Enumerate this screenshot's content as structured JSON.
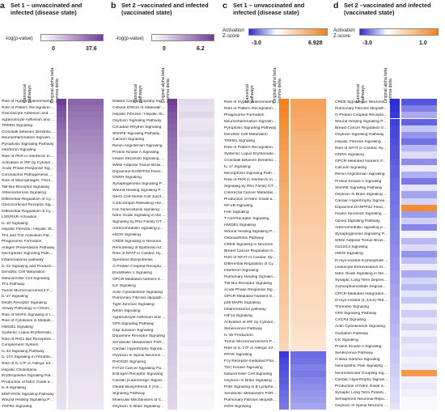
{
  "panels": [
    {
      "id": "a",
      "label": "a",
      "title": "Set 1 – unvaccinated and infected (disease state)",
      "cbar_label": "-log(p-value)",
      "cmin": "0",
      "cmax": "37.6",
      "col_headers": [
        "Canonical pathways",
        "Original alpha beta gamma delta"
      ],
      "colors": {
        "low": "#ffffff",
        "high": "#6f3f97"
      },
      "pathways": [
        "Role of Hypercytokinemia/hy...",
        "Role of Pattern Recognition R...",
        "Granulocyte Adhesion and Di...",
        "Agranulocyte Adhesion and D...",
        "TREM1 Signaling",
        "Crosstalk between Dendritic ...",
        "Neuroinflammation Signaling...",
        "Pyroptosis Signaling Pathway",
        "Interferon Signaling",
        "Role of PKR in Interferon Indu...",
        "Activation of IRF by Cytosolic ...",
        "Acute Phase Response Signal...",
        "Coronavirus Pathogenesis Pa...",
        "Role of Macrophages, Fibrobl...",
        "Toll-like Receptor Signaling",
        "Atherosclerosis Signaling",
        "Differential Regulation of Cyt...",
        "Glucocorticoid Receptor Sign...",
        "Differential Regulation of Cyt...",
        "LXR/RXR Activation",
        "IL-10 Signaling",
        "Hepatic Fibrosis / Hepatic St...",
        "Th1 and Th2 Activation Pathw...",
        "Phagosome Formation",
        "Antigen Presentation Pathway",
        "Necroptosis Signaling Pathway",
        "Inflammasome pathway",
        "IL-12 Signaling and Producti...",
        "Dendritic Cell Maturation",
        "Natural Killer Cell Signaling",
        "Th1 Pathway",
        "Tumor Microenvironment Pat...",
        "IL-17 Signaling",
        "Death Receptor Signaling",
        "Airway Pathology in Chronic ...",
        "Role of MAPK Signaling in Inh...",
        "Role of Cytokines in Mediatin...",
        "HMGB1 Signaling",
        "Systemic Lupus Erythematosu...",
        "Role of RIG1-like Receptors i...",
        "Complement System",
        "IL-23 Signaling Pathway",
        "IL-17A Signaling in Fibroblasts",
        "Role of IL-17F in Allergic Infla...",
        "Hepatic Cholestasis",
        "Erythropoietin Signaling Path...",
        "Production of Nitric Oxide an...",
        "IL-6 Signaling",
        "MSP-RON Signaling Pathway",
        "Wound Healing Signaling Pat...",
        "TNFR2 Signaling"
      ],
      "values": [
        [
          37.6,
          30.2
        ],
        [
          35.1,
          28.4
        ],
        [
          33.0,
          27.1
        ],
        [
          31.2,
          26.0
        ],
        [
          29.8,
          25.3
        ],
        [
          28.1,
          24.0
        ],
        [
          26.9,
          23.2
        ],
        [
          25.4,
          22.0
        ],
        [
          24.8,
          21.7
        ],
        [
          23.5,
          20.1
        ],
        [
          22.6,
          19.4
        ],
        [
          21.9,
          18.8
        ],
        [
          21.0,
          18.1
        ],
        [
          20.4,
          17.2
        ],
        [
          19.8,
          17.0
        ],
        [
          19.0,
          16.4
        ],
        [
          18.5,
          15.9
        ],
        [
          17.8,
          15.2
        ],
        [
          17.2,
          14.8
        ],
        [
          16.6,
          14.1
        ],
        [
          16.1,
          13.9
        ],
        [
          15.7,
          13.2
        ],
        [
          15.2,
          12.8
        ],
        [
          14.8,
          12.5
        ],
        [
          14.3,
          12.0
        ],
        [
          13.9,
          11.8
        ],
        [
          13.5,
          11.1
        ],
        [
          13.0,
          10.9
        ],
        [
          12.6,
          10.6
        ],
        [
          12.2,
          10.1
        ],
        [
          11.9,
          9.8
        ],
        [
          11.5,
          9.5
        ],
        [
          11.2,
          9.3
        ],
        [
          10.8,
          9.0
        ],
        [
          10.5,
          8.6
        ],
        [
          10.1,
          8.4
        ],
        [
          9.8,
          8.1
        ],
        [
          9.5,
          7.9
        ],
        [
          9.2,
          7.5
        ],
        [
          8.9,
          7.2
        ],
        [
          8.6,
          7.0
        ],
        [
          8.3,
          6.8
        ],
        [
          8.0,
          6.5
        ],
        [
          7.8,
          6.2
        ],
        [
          7.5,
          6.0
        ],
        [
          7.2,
          5.8
        ],
        [
          7.0,
          5.5
        ],
        [
          6.7,
          5.3
        ],
        [
          6.5,
          5.0
        ],
        [
          6.2,
          4.8
        ],
        [
          6.0,
          4.6
        ]
      ]
    },
    {
      "id": "b",
      "label": "b",
      "title": "Set 2 –vaccinated and infected (vaccinated state)",
      "cbar_label": "-log(p-value)",
      "cmin": "0",
      "cmax": "6.2",
      "col_headers": [
        "Canonical pathways",
        "Original alpha beta gamma delta"
      ],
      "colors": {
        "low": "#ffffff",
        "high": "#6f3f97"
      },
      "pathways": [
        "Dilated Cardiomyopathy Sign...",
        "Cellular Effects of Sildenafil (...",
        "Hepatic Fibrosis / Hepatic St...",
        "Oxytocin Signaling Pathway",
        "Circadian Rhythm Signaling",
        "SNARE Signaling Pathway",
        "Calcium Signaling",
        "Renin-Angiotensin Signaling",
        "Protein Kinase A Signaling",
        "Insulin Secretion Signaling Pa...",
        "White Adipose Tissue Browni...",
        "Dopamine-DARPP32 Feedbac...",
        "GNRH Signaling",
        "Synaptogenesis Signaling Pat...",
        "Wound Healing Signaling Pat...",
        "Germ Cell-Sertoli Cell Junctio...",
        "Corticotropin Releasing Hor...",
        "Iron homeostasis signaling p...",
        "Nitric Oxide Signaling in the ...",
        "Signaling by Rho Family GTPa...",
        "Adrenomedullin signaling pat...",
        "eNOS Signaling",
        "CREB Signaling in Neurons",
        "Remodeling of Epithelial Adh...",
        "Role of NFAT in Cardiac Hype...",
        "Spermine Biosynthesis",
        "G-Protein Coupled Receptor ...",
        "Endothelin-1 Signaling",
        "GPCR-Mediated Nutrient Sen...",
        "ILK Signaling",
        "Actin Cytoskeleton Signaling",
        "Pulmonary Fibrosis Idiopathic...",
        "Tight Junction Signaling",
        "Netrin Signaling",
        "Agranulocyte Adhesion and D...",
        "GP6 Signaling Pathway",
        "Gap Junction Signaling",
        "Dopamine Receptor Signaling",
        "Xenobiotic Metabolism PXR S...",
        "Cardiac Hypertrophy Signalin...",
        "Oxytocin In Spinal Neurons Si...",
        "RHOGDI Signaling",
        "FAT10 Cancer Signaling Pathw...",
        "Estrogen Receptor Signaling",
        "Cardiac β-adrenergic Signaling",
        "Oleate Biosynthesis II (Anima...",
        "Signaling Pathway",
        "Molecular Mechanisms of Ca...",
        "Oxytocin In Brain Signaling P..."
      ],
      "values": [
        [
          6.2,
          1.2
        ],
        [
          5.8,
          1.0
        ],
        [
          5.5,
          1.3
        ],
        [
          5.3,
          0.8
        ],
        [
          5.1,
          0.9
        ],
        [
          4.9,
          1.1
        ],
        [
          4.7,
          0.7
        ],
        [
          4.6,
          0.9
        ],
        [
          4.4,
          1.0
        ],
        [
          4.3,
          0.8
        ],
        [
          4.1,
          0.6
        ],
        [
          4.0,
          0.9
        ],
        [
          3.9,
          0.7
        ],
        [
          3.8,
          1.0
        ],
        [
          3.7,
          0.8
        ],
        [
          3.6,
          0.6
        ],
        [
          3.5,
          0.9
        ],
        [
          3.4,
          0.7
        ],
        [
          3.3,
          0.5
        ],
        [
          3.2,
          0.8
        ],
        [
          3.1,
          0.6
        ],
        [
          3.0,
          0.7
        ],
        [
          2.9,
          0.9
        ],
        [
          2.8,
          0.5
        ],
        [
          2.8,
          0.6
        ],
        [
          2.7,
          0.4
        ],
        [
          2.6,
          0.7
        ],
        [
          2.5,
          0.6
        ],
        [
          2.5,
          0.5
        ],
        [
          2.4,
          0.8
        ],
        [
          2.3,
          0.6
        ],
        [
          2.3,
          0.4
        ],
        [
          2.2,
          0.5
        ],
        [
          2.1,
          0.7
        ],
        [
          2.1,
          0.4
        ],
        [
          2.0,
          0.6
        ],
        [
          1.9,
          0.5
        ],
        [
          1.9,
          0.4
        ],
        [
          1.8,
          0.6
        ],
        [
          1.8,
          0.3
        ],
        [
          1.7,
          0.5
        ],
        [
          1.7,
          0.4
        ],
        [
          1.6,
          0.5
        ],
        [
          1.6,
          0.3
        ],
        [
          1.5,
          0.4
        ],
        [
          1.5,
          0.3
        ],
        [
          1.4,
          0.4
        ],
        [
          1.4,
          0.3
        ],
        [
          1.3,
          0.3
        ]
      ]
    },
    {
      "id": "c",
      "label": "c",
      "title": "Set 1 – unvaccinated and infected (disease state)",
      "cbar_label": "Activation Z-score",
      "cmin": "-3.0",
      "cmax": "6.928",
      "col_headers": [
        "Canonical pathways",
        "Original alpha beta gamma delta"
      ],
      "colors": {
        "neg": "#2b2bd8",
        "mid": "#ffffff",
        "pos": "#f2801f"
      },
      "pathways": [
        "Role of Hypercytokinemia/hy...",
        "Role of Pattern Recognition R...",
        "Phagosome Formation",
        "Neuroinflammation Signaling...",
        "Pyroptosis Signaling Pathway",
        "Dendritic Cell Maturation",
        "TREM1 Signaling",
        "Role of Pattern Recognition R...",
        "Systemic Lupus Erythematosu...",
        "Crosstalk between Dendritic ...",
        "IL-17 Signaling",
        "Necroptosis Signaling Pathway",
        "Role of PKR in Interferon Indu...",
        "Signaling by Rho Family GTPa...",
        "Colorectal Cancer Metastasis...",
        "Production of Nitric Oxide an...",
        "NF-κB Signaling",
        "FAK Signaling",
        "T Cell Receptor Signaling",
        "HMGB1 Signaling",
        "Wound Healing Signaling Pat...",
        "Osteoarthritis Pathway",
        "CREB Signaling in Neurons",
        "Breast Cancer Regulation by ...",
        "Role of NFAT in Cardiac Hype...",
        "Differential Regulation of Cyt...",
        "Interferon Signaling",
        "Pulmonary Healing Signaling ...",
        "Toll-like Receptor Signaling",
        "Acute Phase Response Signal...",
        "GPCR-Mediated Nutrient Sen...",
        "p38 MAPK Signaling",
        "Inflammasome pathway",
        "HIF1α Signaling",
        "Activation of IRF by Cytosolic ...",
        "Senescence Pathway",
        "IL-15 Production",
        "Tumor Microenvironment Pat...",
        "Role of IL-17F in Allergic Infla...",
        "PPAR Signaling",
        "Fcγ Receptor-mediated Phag...",
        "TEC Kinase Signaling",
        "Natural Killer Cell Signaling",
        "Oxytocin In Brain Signaling P...",
        "PI3K Signaling in B Lymphocyt...",
        "Xenobiotic Metabolism PXR S...",
        "Pulmonary Fibrosis Idiopathic...",
        "iNOS Signaling"
      ],
      "values": [
        [
          6.9,
          5.1
        ],
        [
          6.7,
          5.0
        ],
        [
          6.5,
          4.8
        ],
        [
          6.2,
          4.6
        ],
        [
          6.0,
          4.5
        ],
        [
          5.8,
          4.2
        ],
        [
          5.6,
          4.1
        ],
        [
          5.5,
          4.0
        ],
        [
          5.3,
          3.9
        ],
        [
          5.2,
          3.7
        ],
        [
          5.0,
          3.6
        ],
        [
          4.9,
          3.6
        ],
        [
          4.8,
          3.4
        ],
        [
          4.6,
          3.3
        ],
        [
          4.5,
          3.2
        ],
        [
          4.4,
          3.1
        ],
        [
          4.3,
          3.0
        ],
        [
          4.2,
          3.0
        ],
        [
          4.1,
          2.9
        ],
        [
          4.0,
          2.8
        ],
        [
          3.9,
          2.7
        ],
        [
          3.8,
          2.7
        ],
        [
          3.7,
          2.6
        ],
        [
          3.6,
          2.5
        ],
        [
          3.5,
          2.4
        ],
        [
          3.4,
          2.4
        ],
        [
          3.4,
          2.3
        ],
        [
          3.3,
          2.2
        ],
        [
          3.2,
          2.2
        ],
        [
          3.1,
          2.1
        ],
        [
          3.0,
          2.0
        ],
        [
          3.0,
          2.0
        ],
        [
          2.9,
          1.9
        ],
        [
          2.8,
          1.8
        ],
        [
          2.7,
          1.8
        ],
        [
          2.6,
          1.7
        ],
        [
          2.5,
          1.6
        ],
        [
          2.4,
          1.5
        ],
        [
          2.3,
          1.4
        ],
        [
          -2.8,
          -2.1
        ],
        [
          -2.6,
          -2.0
        ],
        [
          -2.5,
          -1.8
        ],
        [
          -2.4,
          -1.9
        ],
        [
          -2.3,
          -1.7
        ],
        [
          -2.2,
          -1.6
        ],
        [
          -2.1,
          -1.5
        ],
        [
          -2.0,
          -1.4
        ],
        [
          -1.9,
          -1.3
        ]
      ]
    },
    {
      "id": "d",
      "label": "d",
      "title": "Set 2 –vaccinated and infected (vaccinated state)",
      "cbar_label": "Activation Z-score",
      "cmin": "-3.0",
      "cmax": "1.0",
      "col_headers": [
        "Canonical pathways",
        "Original alpha beta gamma delta"
      ],
      "colors": {
        "neg": "#2b2bd8",
        "mid": "#ffffff",
        "pos": "#f2801f"
      },
      "pathways": [
        "CREB Signaling in Neurons",
        "Pulmonary Fibrosis Idiopathic...",
        "G-Protein Coupled Receptor ...",
        "Wound Healing Signaling Pat...",
        "Breast Cancer Regulation by ...",
        "Oxytocin Signaling Pathway",
        "Hepatic Fibrosis Signaling Pa...",
        "Role of NFAT in Cardiac Hype...",
        "GNRH Signaling",
        "GPCR-Mediated Nutrient Sen...",
        "Calcium Signaling",
        "Renin-Angiotensin Signaling",
        "Protein Kinase A Signaling",
        "SNARE Signaling Pathway",
        "Oxytocin In Brain Signaling P...",
        "Cardiac Hypertrophy Signalin...",
        "Dopamine-DARPP32 Feedbac...",
        "Insulin Secretion Signaling Pa...",
        "Opioid Signaling Pathway",
        "Adrenomedullin signaling pat...",
        "Synaptogenesis Signaling Pat...",
        "White Adipose Tissue Browni...",
        "Gα12/13 Signaling",
        "eNOS Signaling",
        "D-myo-inositol-5-phosphate ...",
        "Leukocyte Extravasation Sign...",
        "Nitric Oxide Signaling in the ...",
        "Synaptic Long Term Depressi...",
        "3-phosphoinositide Degradat...",
        "GPCR-Mediated Integration o...",
        "D-myo-inositol (1,4,5,6)-Tetra...",
        "Thrombin Signaling",
        "GP6 Signaling Pathway",
        "CXCR4 Signaling",
        "Actin Cytoskeleton Signaling",
        "Gustation Pathway",
        "ILK Signaling",
        "Protein Kinase A Signaling",
        "Senescence Pathway",
        "G Beta Gamma Signaling",
        "Neuropathic Pain Signaling in...",
        "Neurovascular Coupling Sign...",
        "Cardiac Hypertrophy Signaling",
        "Production of Nitric Oxide an...",
        "Synaptic Long Term Potentiati...",
        "Semaphorin Neuronal Repulsi...",
        "Oxytocin In Spinal Neurons Si..."
      ],
      "values": [
        [
          -3.0,
          -2.4
        ],
        [
          -2.9,
          -1.8
        ],
        [
          -2.8,
          -1.2
        ],
        [
          -2.7,
          -2.2
        ],
        [
          -2.6,
          -0.8
        ],
        [
          -2.6,
          -1.5
        ],
        [
          -2.5,
          -2.0
        ],
        [
          -2.4,
          -1.0
        ],
        [
          -2.4,
          -0.5
        ],
        [
          -2.3,
          -1.6
        ],
        [
          -2.2,
          -0.3
        ],
        [
          -2.2,
          -1.1
        ],
        [
          -2.1,
          -1.9
        ],
        [
          -2.1,
          -0.4
        ],
        [
          -2.0,
          -1.3
        ],
        [
          -2.0,
          -0.6
        ],
        [
          -1.9,
          0.9
        ],
        [
          -1.9,
          -1.4
        ],
        [
          -1.8,
          -0.7
        ],
        [
          -1.8,
          -1.7
        ],
        [
          -1.7,
          -0.2
        ],
        [
          -1.7,
          -1.0
        ],
        [
          -1.6,
          -0.5
        ],
        [
          -1.6,
          -1.5
        ],
        [
          -1.5,
          -0.9
        ],
        [
          -1.5,
          -0.3
        ],
        [
          -1.4,
          -1.2
        ],
        [
          -1.4,
          -0.6
        ],
        [
          -1.3,
          -1.0
        ],
        [
          -1.3,
          -0.4
        ],
        [
          -1.2,
          -0.8
        ],
        [
          -1.2,
          -0.2
        ],
        [
          -1.1,
          -0.7
        ],
        [
          -1.1,
          -0.3
        ],
        [
          -1.0,
          -0.6
        ],
        [
          -1.0,
          -0.2
        ],
        [
          -0.9,
          -0.5
        ],
        [
          -0.9,
          -0.3
        ],
        [
          -0.8,
          -0.4
        ],
        [
          -0.8,
          -0.2
        ],
        [
          -0.7,
          -0.3
        ],
        [
          -0.7,
          0.8
        ],
        [
          -0.6,
          -0.2
        ],
        [
          -0.6,
          -0.3
        ],
        [
          -0.5,
          -0.2
        ],
        [
          -0.5,
          -0.1
        ],
        [
          -0.4,
          -0.1
        ]
      ]
    }
  ]
}
